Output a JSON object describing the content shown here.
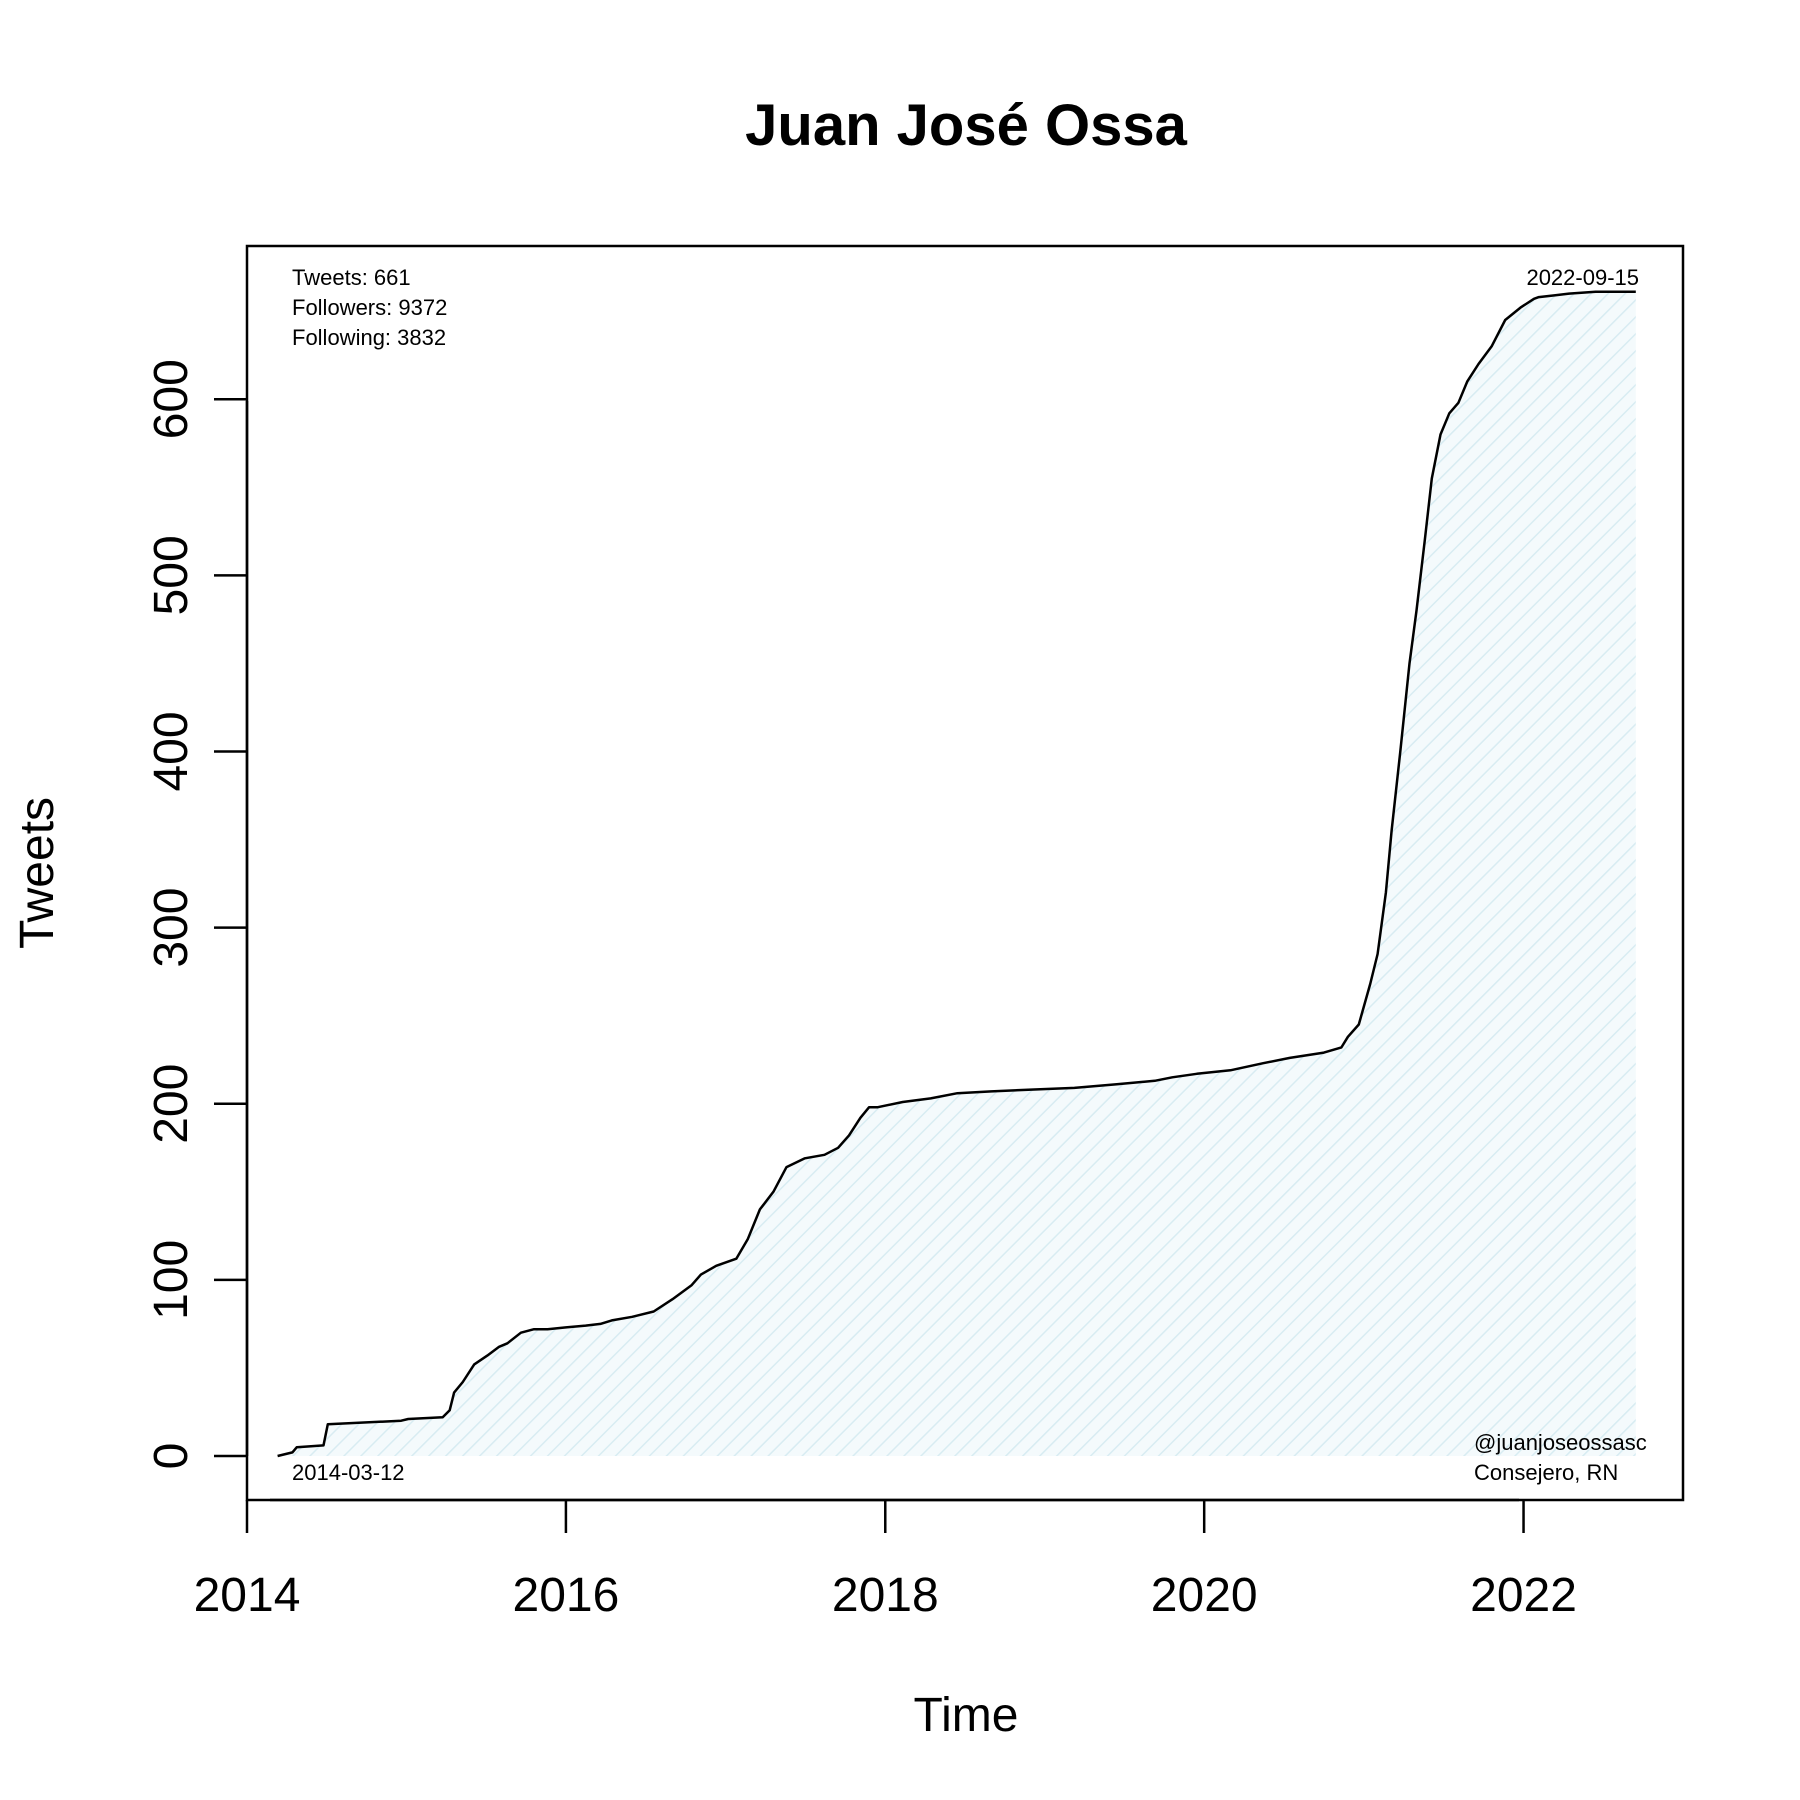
{
  "chart_data": {
    "type": "area",
    "title": "Juan José Ossa",
    "xlabel": "Time",
    "ylabel": "Tweets",
    "xlim": [
      "2014-01-01",
      "2023-01-01"
    ],
    "ylim": [
      -25,
      687
    ],
    "x_ticks": [
      "2014",
      "2016",
      "2018",
      "2020",
      "2022"
    ],
    "y_ticks": [
      "0",
      "100",
      "200",
      "300",
      "400",
      "500",
      "600"
    ],
    "grid": false,
    "line_color": "#000000",
    "fill_color": "#e8f4f8",
    "annotations": {
      "stats": [
        "Tweets: 661",
        "Followers: 9372",
        "Following: 3832"
      ],
      "start_date": "2014-03-12",
      "end_date": "2022-09-15",
      "handle": "@juanjoseossasc",
      "role": "Consejero, RN"
    },
    "series": [
      {
        "x": [
          "2014-03-12",
          "2014-04-15",
          "2014-04-25",
          "2014-06-25",
          "2014-07-05",
          "2014-12-20",
          "2015-01-05",
          "2015-03-25",
          "2015-04-10",
          "2015-04-20",
          "2015-05-10",
          "2015-06-05",
          "2015-07-05",
          "2015-08-01",
          "2015-08-20",
          "2015-09-20",
          "2015-10-20",
          "2015-11-20",
          "2016-01-01",
          "2016-02-15",
          "2016-03-20",
          "2016-04-15",
          "2016-06-01",
          "2016-07-20",
          "2016-09-01",
          "2016-10-15",
          "2016-11-05",
          "2016-12-10",
          "2017-01-25",
          "2017-02-20",
          "2017-03-20",
          "2017-04-20",
          "2017-05-20",
          "2017-07-01",
          "2017-08-15",
          "2017-09-15",
          "2017-10-10",
          "2017-11-05",
          "2017-11-25",
          "2017-12-15",
          "2018-02-10",
          "2018-04-15",
          "2018-06-15",
          "2018-09-01",
          "2018-12-01",
          "2019-03-10",
          "2019-06-15",
          "2019-09-10",
          "2019-10-20",
          "2019-12-15",
          "2020-03-01",
          "2020-05-15",
          "2020-07-15",
          "2020-10-01",
          "2020-11-10",
          "2020-11-25",
          "2020-12-20",
          "2021-01-15",
          "2021-02-01",
          "2021-02-20",
          "2021-03-05",
          "2021-03-25",
          "2021-04-15",
          "2021-05-01",
          "2021-05-20",
          "2021-06-05",
          "2021-06-25",
          "2021-07-15",
          "2021-08-05",
          "2021-08-25",
          "2021-09-20",
          "2021-10-20",
          "2021-11-20",
          "2021-12-25",
          "2022-01-25",
          "2022-02-05",
          "2022-03-15",
          "2022-04-15",
          "2022-06-15",
          "2022-09-15"
        ],
        "y": [
          0,
          2,
          5,
          6,
          18,
          20,
          21,
          22,
          26,
          36,
          42,
          52,
          57,
          62,
          64,
          70,
          72,
          72,
          73,
          74,
          75,
          77,
          79,
          82,
          89,
          97,
          103,
          108,
          112,
          123,
          140,
          150,
          164,
          169,
          171,
          175,
          182,
          192,
          198,
          198,
          201,
          203,
          206,
          207,
          208,
          209,
          211,
          213,
          215,
          217,
          219,
          223,
          226,
          229,
          232,
          238,
          245,
          268,
          285,
          320,
          355,
          400,
          450,
          480,
          520,
          555,
          580,
          592,
          598,
          610,
          620,
          630,
          645,
          652,
          657,
          658,
          659,
          660,
          661,
          661
        ]
      }
    ]
  }
}
